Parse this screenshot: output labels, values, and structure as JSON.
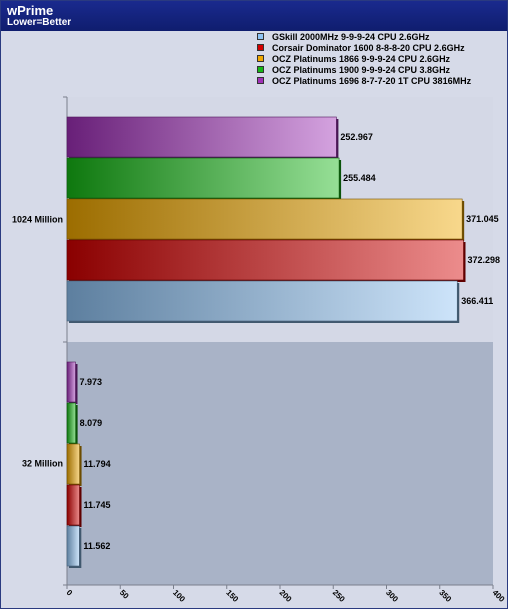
{
  "header": {
    "title": "wPrime",
    "subtitle": "Lower=Better"
  },
  "chart_data": {
    "type": "bar",
    "orientation": "horizontal",
    "title": "wPrime",
    "subtitle": "Lower=Better",
    "categories": [
      "1024 Million",
      "32 Million"
    ],
    "series": [
      {
        "name": "GSkill 2000MHz 9-9-9-24 CPU 2.6GHz",
        "color": "#8fc4f4",
        "values": [
          366.411,
          11.562
        ]
      },
      {
        "name": "Corsair Dominator 1600 8-8-8-20 CPU 2.6GHz",
        "color": "#d40000",
        "values": [
          372.298,
          11.745
        ]
      },
      {
        "name": "OCZ Platinums 1866 9-9-9-24 CPU 2.6GHz",
        "color": "#f0a800",
        "values": [
          371.045,
          11.794
        ]
      },
      {
        "name": "OCZ Platinums 1900 9-9-9-24 CPU 3.8GHz",
        "color": "#16b816",
        "values": [
          255.484,
          8.079
        ]
      },
      {
        "name": "OCZ Platinums 1696 8-7-7-20 1T CPU 3816MHz",
        "color": "#a030b8",
        "values": [
          252.967,
          7.973
        ]
      }
    ],
    "value_labels": [
      [
        "366.411",
        "372.298",
        "371.045",
        "255.484",
        "252.967"
      ],
      [
        "11.562",
        "11.745",
        "11.794",
        "8.079",
        "7.973"
      ]
    ],
    "xticks": [
      "0",
      "50",
      "100",
      "150",
      "200",
      "250",
      "300",
      "350",
      "400"
    ],
    "xlim": [
      0,
      400
    ],
    "legend": "top-right",
    "grid": false
  }
}
